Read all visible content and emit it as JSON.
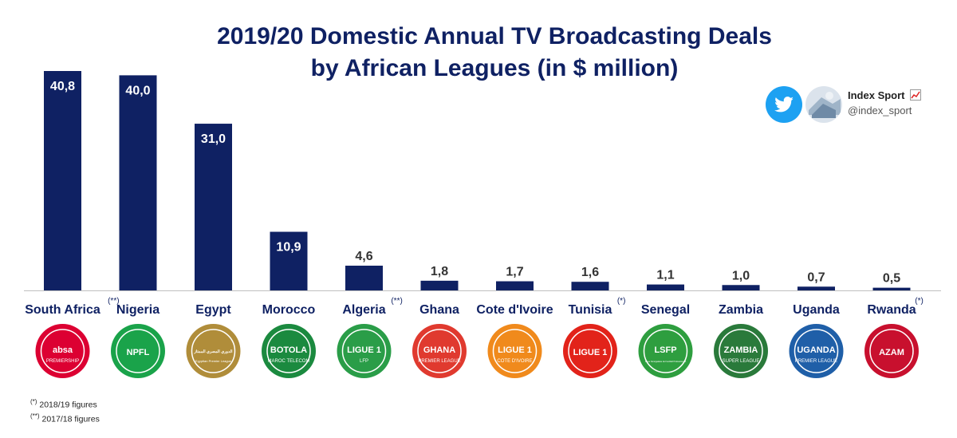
{
  "title_line1": "2019/20 Domestic Annual TV Broadcasting Deals",
  "title_line2": "by African Leagues (in $ million)",
  "brand": {
    "name": "Index Sport",
    "handle": "@index_sport",
    "icon": "chart-increasing-emoji"
  },
  "footnotes": [
    {
      "mark": "(*)",
      "text": "2018/19 figures"
    },
    {
      "mark": "(**)",
      "text": "2017/18 figures"
    }
  ],
  "colors": {
    "bar": "#0f2163",
    "title": "#0f2163",
    "twitter": "#1da1f2"
  },
  "chart_data": {
    "type": "bar",
    "title": "2019/20 Domestic Annual TV Broadcasting Deals by African Leagues (in $ million)",
    "xlabel": "",
    "ylabel": "",
    "ylim": [
      0,
      41
    ],
    "grid": false,
    "categories": [
      "South Africa",
      "Nigeria",
      "Egypt",
      "Morocco",
      "Algeria",
      "Ghana",
      "Cote d'Ivoire",
      "Tunisia",
      "Senegal",
      "Zambia",
      "Uganda",
      "Rwanda"
    ],
    "values": [
      40.8,
      40.0,
      31.0,
      10.9,
      4.6,
      1.8,
      1.7,
      1.6,
      1.1,
      1.0,
      0.7,
      0.5
    ],
    "value_labels": [
      "40,8",
      "40,0",
      "31,0",
      "10,9",
      "4,6",
      "1,8",
      "1,7",
      "1,6",
      "1,1",
      "1,0",
      "0,7",
      "0,5"
    ],
    "footnote_marks": [
      "(**)",
      "",
      "",
      "",
      "(**)",
      "",
      "",
      "(*)",
      "",
      "",
      "",
      "(*)"
    ],
    "league_logos": [
      {
        "text": "absa",
        "sub": "PREMIERSHIP",
        "color": "#dc0032"
      },
      {
        "text": "NPFL",
        "sub": "",
        "color": "#1aa34a"
      },
      {
        "text": "الدوري المصري الممتاز",
        "sub": "Egyptian Premier League",
        "color": "#b08d3a"
      },
      {
        "text": "BOTOLA",
        "sub": "MAROC TELECOM",
        "color": "#1b8a3f"
      },
      {
        "text": "LIGUE 1",
        "sub": "LFP",
        "color": "#2a9d48"
      },
      {
        "text": "GHANA",
        "sub": "PREMIER LEAGUE",
        "color": "#e03a2f"
      },
      {
        "text": "LIGUE 1",
        "sub": "COTE D'IVOIRE",
        "color": "#f08a1c"
      },
      {
        "text": "LIGUE 1",
        "sub": "",
        "color": "#e2231a"
      },
      {
        "text": "LSFP",
        "sub": "Ligue Sénégalaise de Football Professionnel",
        "color": "#2e9e3f"
      },
      {
        "text": "ZAMBIA",
        "sub": "SUPER LEAGUE",
        "color": "#2a7a3b"
      },
      {
        "text": "UGANDA",
        "sub": "PREMIER LEAGUE",
        "color": "#1f5fa8"
      },
      {
        "text": "AZAM",
        "sub": "",
        "color": "#c8102e"
      }
    ]
  }
}
